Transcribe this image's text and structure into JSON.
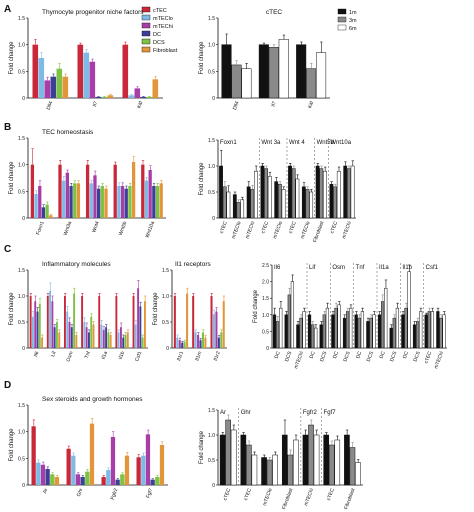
{
  "figure": {
    "panel_letters": [
      "A",
      "B",
      "C",
      "D"
    ],
    "colors": {
      "cTEC": "#c8283a",
      "mTEClo": "#7dbbe6",
      "mTEChi": "#a83da8",
      "DC": "#3b3f95",
      "DCS": "#7dc243",
      "Fibroblast": "#e3953a",
      "1m": "#111111",
      "3m": "#8a8a8a",
      "6m": "#ffffff"
    }
  },
  "chart_data": [
    {
      "id": "A1",
      "panel": "A",
      "type": "bar",
      "title": "Thymocyte progenitor niche factors",
      "ylabel": "Fold change",
      "ylim": [
        0,
        1.5
      ],
      "yticks": [
        0,
        0.5,
        1.0,
        1.5
      ],
      "categories": [
        "Dll4",
        "Il7",
        "Kitl"
      ],
      "legend": {
        "placement": "top-right",
        "entries": [
          "cTEC",
          "mTEClo",
          "mTEChi",
          "DC",
          "DCS",
          "Fibroblast"
        ]
      },
      "series": [
        {
          "name": "cTEC",
          "values": [
            1.0,
            1.0,
            1.0
          ],
          "errors": [
            0.1,
            0.03,
            0.05
          ]
        },
        {
          "name": "mTEClo",
          "values": [
            0.75,
            0.85,
            0.05
          ],
          "errors": [
            0.1,
            0.06,
            0.02
          ]
        },
        {
          "name": "mTEChi",
          "values": [
            0.33,
            0.68,
            0.18
          ],
          "errors": [
            0.06,
            0.05,
            0.03
          ]
        },
        {
          "name": "DC",
          "values": [
            0.4,
            0.02,
            0.02
          ],
          "errors": [
            0.05,
            0.01,
            0.01
          ]
        },
        {
          "name": "DCS",
          "values": [
            0.55,
            0.02,
            0.02
          ],
          "errors": [
            0.1,
            0.01,
            0.01
          ]
        },
        {
          "name": "Fibroblast",
          "values": [
            0.4,
            0.05,
            0.35
          ],
          "errors": [
            0.05,
            0.02,
            0.05
          ]
        }
      ]
    },
    {
      "id": "A2",
      "panel": "A",
      "type": "bar",
      "title": "cTEC",
      "ylabel": "Fold change",
      "ylim": [
        0,
        1.5
      ],
      "yticks": [
        0,
        0.5,
        1.0,
        1.5
      ],
      "categories": [
        "Dll4",
        "Il7",
        "Kitl"
      ],
      "legend": {
        "placement": "top-right",
        "entries": [
          "1m",
          "3m",
          "6m"
        ]
      },
      "series": [
        {
          "name": "1m",
          "values": [
            1.0,
            1.0,
            1.0
          ],
          "errors": [
            0.2,
            0.03,
            0.05
          ]
        },
        {
          "name": "3m",
          "values": [
            0.62,
            0.95,
            0.55
          ],
          "errors": [
            0.08,
            0.05,
            0.1
          ]
        },
        {
          "name": "6m",
          "values": [
            0.55,
            1.1,
            0.85
          ],
          "errors": [
            0.1,
            0.08,
            0.2
          ]
        }
      ]
    },
    {
      "id": "B1",
      "panel": "B",
      "type": "bar",
      "title": "TEC homeostasis",
      "ylabel": "Fold change",
      "ylim": [
        0,
        1.5
      ],
      "yticks": [
        0,
        0.5,
        1.0,
        1.5
      ],
      "categories": [
        "Foxn1",
        "Wnt3a",
        "Wnt4",
        "Wnt5b",
        "Wnt10a"
      ],
      "series": [
        {
          "name": "cTEC",
          "values": [
            1.0,
            1.0,
            1.0,
            1.0,
            1.0
          ],
          "errors": [
            0.3,
            0.08,
            0.08,
            0.05,
            0.08
          ]
        },
        {
          "name": "mTEClo",
          "values": [
            0.45,
            0.7,
            0.65,
            0.6,
            0.7
          ],
          "errors": [
            0.06,
            0.08,
            0.06,
            0.06,
            0.06
          ]
        },
        {
          "name": "mTEChi",
          "values": [
            0.6,
            0.85,
            0.8,
            0.6,
            0.9
          ],
          "errors": [
            0.1,
            0.05,
            0.08,
            0.06,
            0.08
          ]
        },
        {
          "name": "DC",
          "values": [
            0.2,
            0.6,
            0.55,
            0.55,
            0.6
          ],
          "errors": [
            0.05,
            0.05,
            0.05,
            0.05,
            0.05
          ]
        },
        {
          "name": "DCS",
          "values": [
            0.25,
            0.65,
            0.6,
            0.6,
            0.6
          ],
          "errors": [
            0.05,
            0.05,
            0.05,
            0.05,
            0.05
          ]
        },
        {
          "name": "Fibroblast",
          "values": [
            0.05,
            0.65,
            0.55,
            1.05,
            0.65
          ],
          "errors": [
            0.02,
            0.05,
            0.05,
            0.1,
            0.05
          ]
        }
      ]
    },
    {
      "id": "B2",
      "panel": "B",
      "type": "bar",
      "ylabel": "Fold change",
      "ylim": [
        0,
        1.5
      ],
      "yticks": [
        0,
        0.5,
        1.0,
        1.5
      ],
      "categories": [
        "cTEC",
        "mTEClo",
        "mTEChi",
        "cTEC",
        "mTEClo",
        "cTEC",
        "mTEClo",
        "Fibroblast",
        "cTEC",
        "mTEChi"
      ],
      "groups": [
        {
          "label": "Foxn1",
          "start": 0,
          "end": 2
        },
        {
          "label": "Wnt 3a",
          "start": 3,
          "end": 4
        },
        {
          "label": "Wnt 4",
          "start": 5,
          "end": 6
        },
        {
          "label": "Wnt5b",
          "start": 7,
          "end": 7
        },
        {
          "label": "Wnt10a",
          "start": 8,
          "end": 9
        }
      ],
      "series": [
        {
          "name": "1m",
          "values": [
            1.0,
            0.45,
            0.6,
            1.0,
            0.7,
            1.0,
            0.6,
            1.0,
            0.65,
            1.0
          ],
          "errors": [
            0.3,
            0.05,
            0.1,
            0.05,
            0.08,
            0.05,
            0.08,
            0.05,
            0.05,
            0.08
          ]
        },
        {
          "name": "3m",
          "values": [
            0.6,
            0.3,
            0.55,
            0.95,
            0.65,
            0.95,
            0.55,
            0.95,
            0.6,
            0.95
          ],
          "errors": [
            0.1,
            0.05,
            0.08,
            0.05,
            0.05,
            0.05,
            0.05,
            0.05,
            0.05,
            0.05
          ]
        },
        {
          "name": "6m",
          "values": [
            0.5,
            0.35,
            0.9,
            0.8,
            0.55,
            0.75,
            0.5,
            0.9,
            0.9,
            1.0
          ],
          "errors": [
            0.12,
            0.05,
            0.1,
            0.08,
            0.05,
            0.08,
            0.05,
            0.08,
            0.08,
            0.1
          ]
        }
      ]
    },
    {
      "id": "C1",
      "panel": "C",
      "type": "bar",
      "title": "Inflammatory molecules",
      "ylabel": "Fold change",
      "ylim": [
        0,
        1.5
      ],
      "yticks": [
        0,
        0.5,
        1.0,
        1.5
      ],
      "categories": [
        "Il6",
        "Lif",
        "Osm",
        "Tnf",
        "Il1a",
        "Il1b",
        "Csf1"
      ],
      "series": [
        {
          "name": "cTEC",
          "values": [
            1.0,
            1.0,
            1.0,
            1.0,
            1.0,
            1.0,
            1.0
          ],
          "errors": [
            0.05,
            0.05,
            0.05,
            0.05,
            0.05,
            0.05,
            0.05
          ]
        },
        {
          "name": "mTEClo",
          "values": [
            0.6,
            1.1,
            0.7,
            0.5,
            0.45,
            0.3,
            0.45
          ],
          "errors": [
            0.1,
            0.15,
            0.1,
            0.08,
            0.08,
            0.05,
            0.08
          ]
        },
        {
          "name": "mTEChi",
          "values": [
            0.9,
            0.9,
            0.5,
            0.4,
            0.35,
            0.4,
            1.15
          ],
          "errors": [
            0.1,
            0.1,
            0.08,
            0.08,
            0.06,
            0.08,
            0.15
          ]
        },
        {
          "name": "DC",
          "values": [
            0.7,
            0.4,
            0.4,
            0.3,
            0.4,
            0.2,
            0.8
          ],
          "errors": [
            0.08,
            0.05,
            0.05,
            0.05,
            0.05,
            0.05,
            0.08
          ]
        },
        {
          "name": "DCS",
          "values": [
            0.85,
            0.5,
            1.05,
            0.6,
            0.3,
            0.25,
            0.2
          ],
          "errors": [
            0.1,
            0.05,
            0.1,
            0.06,
            0.05,
            0.05,
            0.05
          ]
        },
        {
          "name": "Fibroblast",
          "values": [
            0.2,
            0.3,
            0.25,
            0.45,
            0.25,
            0.3,
            0.9
          ],
          "errors": [
            0.05,
            0.05,
            0.05,
            0.06,
            0.05,
            0.05,
            0.1
          ]
        }
      ]
    },
    {
      "id": "C2",
      "panel": "C",
      "type": "bar",
      "title": "Il1 receptors",
      "ylabel": "Fold change",
      "ylim": [
        0,
        1.5
      ],
      "yticks": [
        0,
        0.5,
        1.0,
        1.5
      ],
      "categories": [
        "Il1r1",
        "Il1rn",
        "Il1r2"
      ],
      "series": [
        {
          "name": "cTEC",
          "values": [
            1.0,
            1.0,
            1.0
          ],
          "errors": [
            0.05,
            0.05,
            0.05
          ]
        },
        {
          "name": "mTEClo",
          "values": [
            0.2,
            0.3,
            0.65
          ],
          "errors": [
            0.05,
            0.05,
            0.08
          ]
        },
        {
          "name": "mTEChi",
          "values": [
            0.15,
            0.25,
            0.7
          ],
          "errors": [
            0.04,
            0.05,
            0.08
          ]
        },
        {
          "name": "DC",
          "values": [
            0.1,
            0.15,
            0.2
          ],
          "errors": [
            0.03,
            0.03,
            0.04
          ]
        },
        {
          "name": "DCS",
          "values": [
            0.12,
            0.3,
            0.3
          ],
          "errors": [
            0.03,
            0.05,
            0.05
          ]
        },
        {
          "name": "Fibroblast",
          "values": [
            1.05,
            0.2,
            0.9
          ],
          "errors": [
            0.1,
            0.04,
            0.1
          ]
        }
      ]
    },
    {
      "id": "C3",
      "panel": "C",
      "type": "bar",
      "ylabel": "Fold change",
      "ylim": [
        0,
        2.5
      ],
      "yticks": [
        0,
        0.5,
        1.0,
        1.5,
        2.0,
        2.5
      ],
      "categories": [
        "DC",
        "DCS",
        "mTEChi",
        "DC",
        "DCS",
        "DC",
        "DCS",
        "DC",
        "DCS",
        "DC",
        "DCS",
        "DC",
        "DCS",
        "cTEC",
        "mTEChi"
      ],
      "groups": [
        {
          "label": "Il6",
          "start": 0,
          "end": 2
        },
        {
          "label": "Lif",
          "start": 3,
          "end": 4
        },
        {
          "label": "Osm",
          "start": 5,
          "end": 6
        },
        {
          "label": "Tnf",
          "start": 7,
          "end": 8
        },
        {
          "label": "Il1a",
          "start": 9,
          "end": 10
        },
        {
          "label": "Il1b",
          "start": 11,
          "end": 12
        },
        {
          "label": "Csf1",
          "start": 13,
          "end": 14
        }
      ],
      "series": [
        {
          "name": "1m",
          "values": [
            1.0,
            1.0,
            0.7,
            1.0,
            0.7,
            1.0,
            0.9,
            1.0,
            0.8,
            1.0,
            0.6,
            1.0,
            0.7,
            1.0,
            1.1
          ],
          "errors": [
            0.2,
            0.1,
            0.1,
            0.1,
            0.1,
            0.1,
            0.1,
            0.1,
            0.1,
            0.1,
            0.1,
            0.1,
            0.1,
            0.05,
            0.1
          ]
        },
        {
          "name": "3m",
          "values": [
            0.8,
            1.6,
            0.9,
            0.7,
            1.0,
            1.2,
            1.1,
            0.9,
            0.9,
            1.4,
            0.9,
            1.2,
            0.8,
            1.1,
            0.9
          ],
          "errors": [
            0.15,
            0.2,
            0.1,
            0.1,
            0.1,
            0.15,
            0.1,
            0.1,
            0.1,
            0.2,
            0.1,
            0.15,
            0.1,
            0.1,
            0.1
          ]
        },
        {
          "name": "6m",
          "values": [
            1.2,
            2.0,
            1.1,
            0.6,
            1.2,
            1.3,
            1.2,
            1.1,
            1.0,
            1.8,
            1.2,
            2.3,
            1.1,
            1.1,
            1.0
          ],
          "errors": [
            0.2,
            0.2,
            0.1,
            0.1,
            0.15,
            0.1,
            0.1,
            0.1,
            0.1,
            0.25,
            0.15,
            0.3,
            0.1,
            0.1,
            0.1
          ]
        }
      ]
    },
    {
      "id": "D1",
      "panel": "D",
      "type": "bar",
      "title": "Sex steroids and growth hormones",
      "ylabel": "Fold change",
      "ylim": [
        0,
        1.5
      ],
      "yticks": [
        0,
        0.5,
        1.0,
        1.5
      ],
      "categories": [
        "Ar",
        "Ghr",
        "Fgfr2",
        "Fgf7"
      ],
      "series": [
        {
          "name": "cTEC",
          "values": [
            1.1,
            0.68,
            0.15,
            0.52
          ],
          "errors": [
            0.12,
            0.05,
            0.03,
            0.05
          ]
        },
        {
          "name": "mTEClo",
          "values": [
            0.42,
            0.55,
            0.28,
            0.55
          ],
          "errors": [
            0.05,
            0.05,
            0.04,
            0.05
          ]
        },
        {
          "name": "mTEChi",
          "values": [
            0.38,
            0.2,
            0.9,
            0.95
          ],
          "errors": [
            0.05,
            0.03,
            0.1,
            0.08
          ]
        },
        {
          "name": "DC",
          "values": [
            0.3,
            0.15,
            0.1,
            0.1
          ],
          "errors": [
            0.04,
            0.03,
            0.02,
            0.02
          ]
        },
        {
          "name": "DCS",
          "values": [
            0.2,
            0.25,
            0.2,
            0.15
          ],
          "errors": [
            0.03,
            0.04,
            0.03,
            0.03
          ]
        },
        {
          "name": "Fibroblast",
          "values": [
            0.15,
            1.15,
            0.55,
            0.75
          ],
          "errors": [
            0.03,
            0.1,
            0.06,
            0.06
          ]
        }
      ]
    },
    {
      "id": "D2",
      "panel": "D",
      "type": "bar",
      "ylabel": "Fold change",
      "ylim": [
        0,
        1.5
      ],
      "yticks": [
        0,
        0.5,
        1.0,
        1.5
      ],
      "categories": [
        "cTEC",
        "cTEC",
        "mTEClo",
        "Fibroblast",
        "mTEChi",
        "cTEC",
        "Fibroblast"
      ],
      "groups": [
        {
          "label": "Ar",
          "start": 0,
          "end": 0
        },
        {
          "label": "Ghr",
          "start": 1,
          "end": 3
        },
        {
          "label": "Fgfr2",
          "start": 4,
          "end": 4
        },
        {
          "label": "Fgf7",
          "start": 5,
          "end": 6
        }
      ],
      "series": [
        {
          "name": "1m",
          "values": [
            1.0,
            1.0,
            0.55,
            1.0,
            1.0,
            1.0,
            1.0
          ],
          "errors": [
            0.05,
            0.05,
            0.05,
            0.3,
            0.1,
            0.05,
            0.1
          ]
        },
        {
          "name": "3m",
          "values": [
            1.3,
            0.8,
            0.5,
            0.6,
            1.2,
            0.8,
            0.75
          ],
          "errors": [
            0.1,
            0.08,
            0.05,
            0.1,
            0.1,
            0.08,
            0.1
          ]
        },
        {
          "name": "6m",
          "values": [
            1.1,
            0.6,
            0.6,
            0.9,
            1.0,
            0.9,
            0.45
          ],
          "errors": [
            0.1,
            0.06,
            0.06,
            0.1,
            0.1,
            0.08,
            0.06
          ]
        }
      ]
    }
  ]
}
